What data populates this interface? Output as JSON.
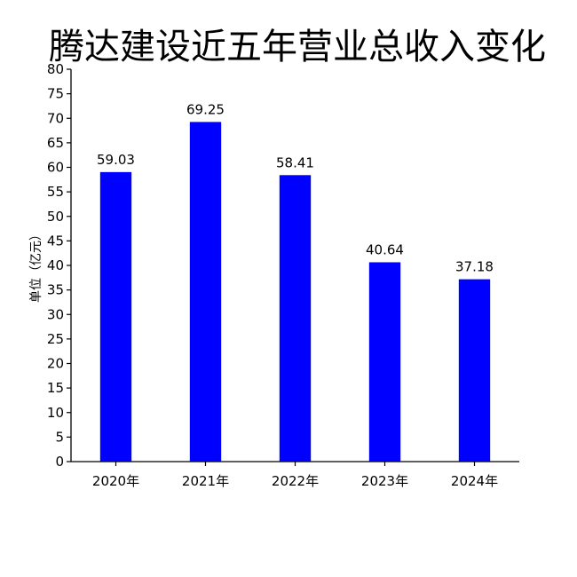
{
  "chart_data": {
    "type": "bar",
    "title": "腾达建设近五年营业总收入变化",
    "ylabel": "单位（亿元）",
    "xlabel": "",
    "categories": [
      "2020年",
      "2021年",
      "2022年",
      "2023年",
      "2024年"
    ],
    "values": [
      59.03,
      69.25,
      58.41,
      40.64,
      37.18
    ],
    "value_labels": [
      "59.03",
      "69.25",
      "58.41",
      "40.64",
      "37.18"
    ],
    "ylim": [
      0,
      80
    ],
    "yticks": [
      0,
      5,
      10,
      15,
      20,
      25,
      30,
      35,
      40,
      45,
      50,
      55,
      60,
      65,
      70,
      75,
      80
    ],
    "bar_color": "#0000ff",
    "grid": false,
    "legend": "none"
  }
}
